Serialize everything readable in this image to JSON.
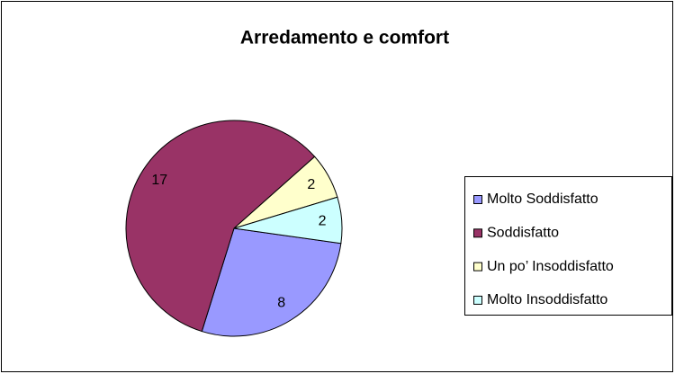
{
  "chart_data": {
    "type": "pie",
    "title": "Arredamento e comfort",
    "categories": [
      "Molto Soddisfatto",
      "Soddisfatto",
      "Un po’ Insoddisfatto",
      "Molto Insoddisfatto"
    ],
    "values": [
      8,
      17,
      2,
      2
    ],
    "colors": [
      "#9999ff",
      "#993366",
      "#ffffcc",
      "#ccffff"
    ],
    "legend": "right"
  }
}
